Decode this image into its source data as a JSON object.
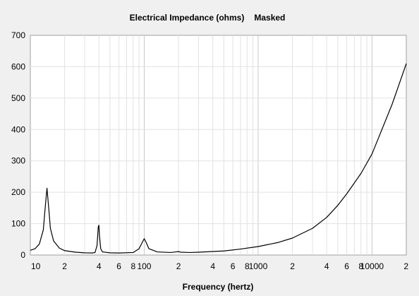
{
  "chart_data": {
    "type": "line",
    "title": "Electrical Impedance (ohms)",
    "title_suffix": "Masked",
    "xlabel": "Frequency (hertz)",
    "ylabel": "",
    "x_scale": "log",
    "xlim": [
      10,
      20000
    ],
    "ylim": [
      0,
      700
    ],
    "y_ticks": [
      0,
      100,
      200,
      300,
      400,
      500,
      600,
      700
    ],
    "x_ticks": [
      {
        "value": 10,
        "label": "10"
      },
      {
        "value": 20,
        "label": "2"
      },
      {
        "value": 40,
        "label": "4"
      },
      {
        "value": 60,
        "label": "6"
      },
      {
        "value": 80,
        "label": "8"
      },
      {
        "value": 100,
        "label": "100"
      },
      {
        "value": 200,
        "label": "2"
      },
      {
        "value": 400,
        "label": "4"
      },
      {
        "value": 600,
        "label": "6"
      },
      {
        "value": 800,
        "label": "8"
      },
      {
        "value": 1000,
        "label": "1000"
      },
      {
        "value": 2000,
        "label": "2"
      },
      {
        "value": 4000,
        "label": "4"
      },
      {
        "value": 6000,
        "label": "6"
      },
      {
        "value": 8000,
        "label": "8"
      },
      {
        "value": 10000,
        "label": "10000"
      },
      {
        "value": 20000,
        "label": "2"
      }
    ],
    "grid": true,
    "colors": {
      "line": "#000000",
      "plot_bg": "#ffffff",
      "grid_minor": "#e2e2e2",
      "grid_major": "#c8c8c8",
      "frame": "#a0a0a0",
      "page_bg": "#f0f0f0"
    },
    "series": [
      {
        "points": [
          [
            10,
            15
          ],
          [
            11,
            20
          ],
          [
            12,
            35
          ],
          [
            13,
            80
          ],
          [
            13.5,
            150
          ],
          [
            14,
            213
          ],
          [
            14.5,
            150
          ],
          [
            15,
            85
          ],
          [
            16,
            45
          ],
          [
            18,
            22
          ],
          [
            20,
            14
          ],
          [
            25,
            9
          ],
          [
            30,
            7
          ],
          [
            35,
            6.5
          ],
          [
            37,
            8
          ],
          [
            38.5,
            30
          ],
          [
            39.5,
            90
          ],
          [
            40,
            95
          ],
          [
            40.5,
            60
          ],
          [
            41.5,
            20
          ],
          [
            43,
            10
          ],
          [
            50,
            7
          ],
          [
            60,
            6.5
          ],
          [
            80,
            8
          ],
          [
            90,
            20
          ],
          [
            96,
            40
          ],
          [
            100,
            52
          ],
          [
            104,
            40
          ],
          [
            110,
            20
          ],
          [
            130,
            10
          ],
          [
            170,
            8
          ],
          [
            190,
            10
          ],
          [
            200,
            11
          ],
          [
            210,
            9
          ],
          [
            250,
            8
          ],
          [
            300,
            9
          ],
          [
            500,
            13
          ],
          [
            700,
            19
          ],
          [
            1000,
            27
          ],
          [
            1500,
            40
          ],
          [
            2000,
            54
          ],
          [
            3000,
            85
          ],
          [
            4000,
            120
          ],
          [
            5000,
            158
          ],
          [
            6000,
            195
          ],
          [
            8000,
            260
          ],
          [
            10000,
            322
          ],
          [
            15000,
            480
          ],
          [
            20000,
            610
          ]
        ]
      }
    ]
  }
}
